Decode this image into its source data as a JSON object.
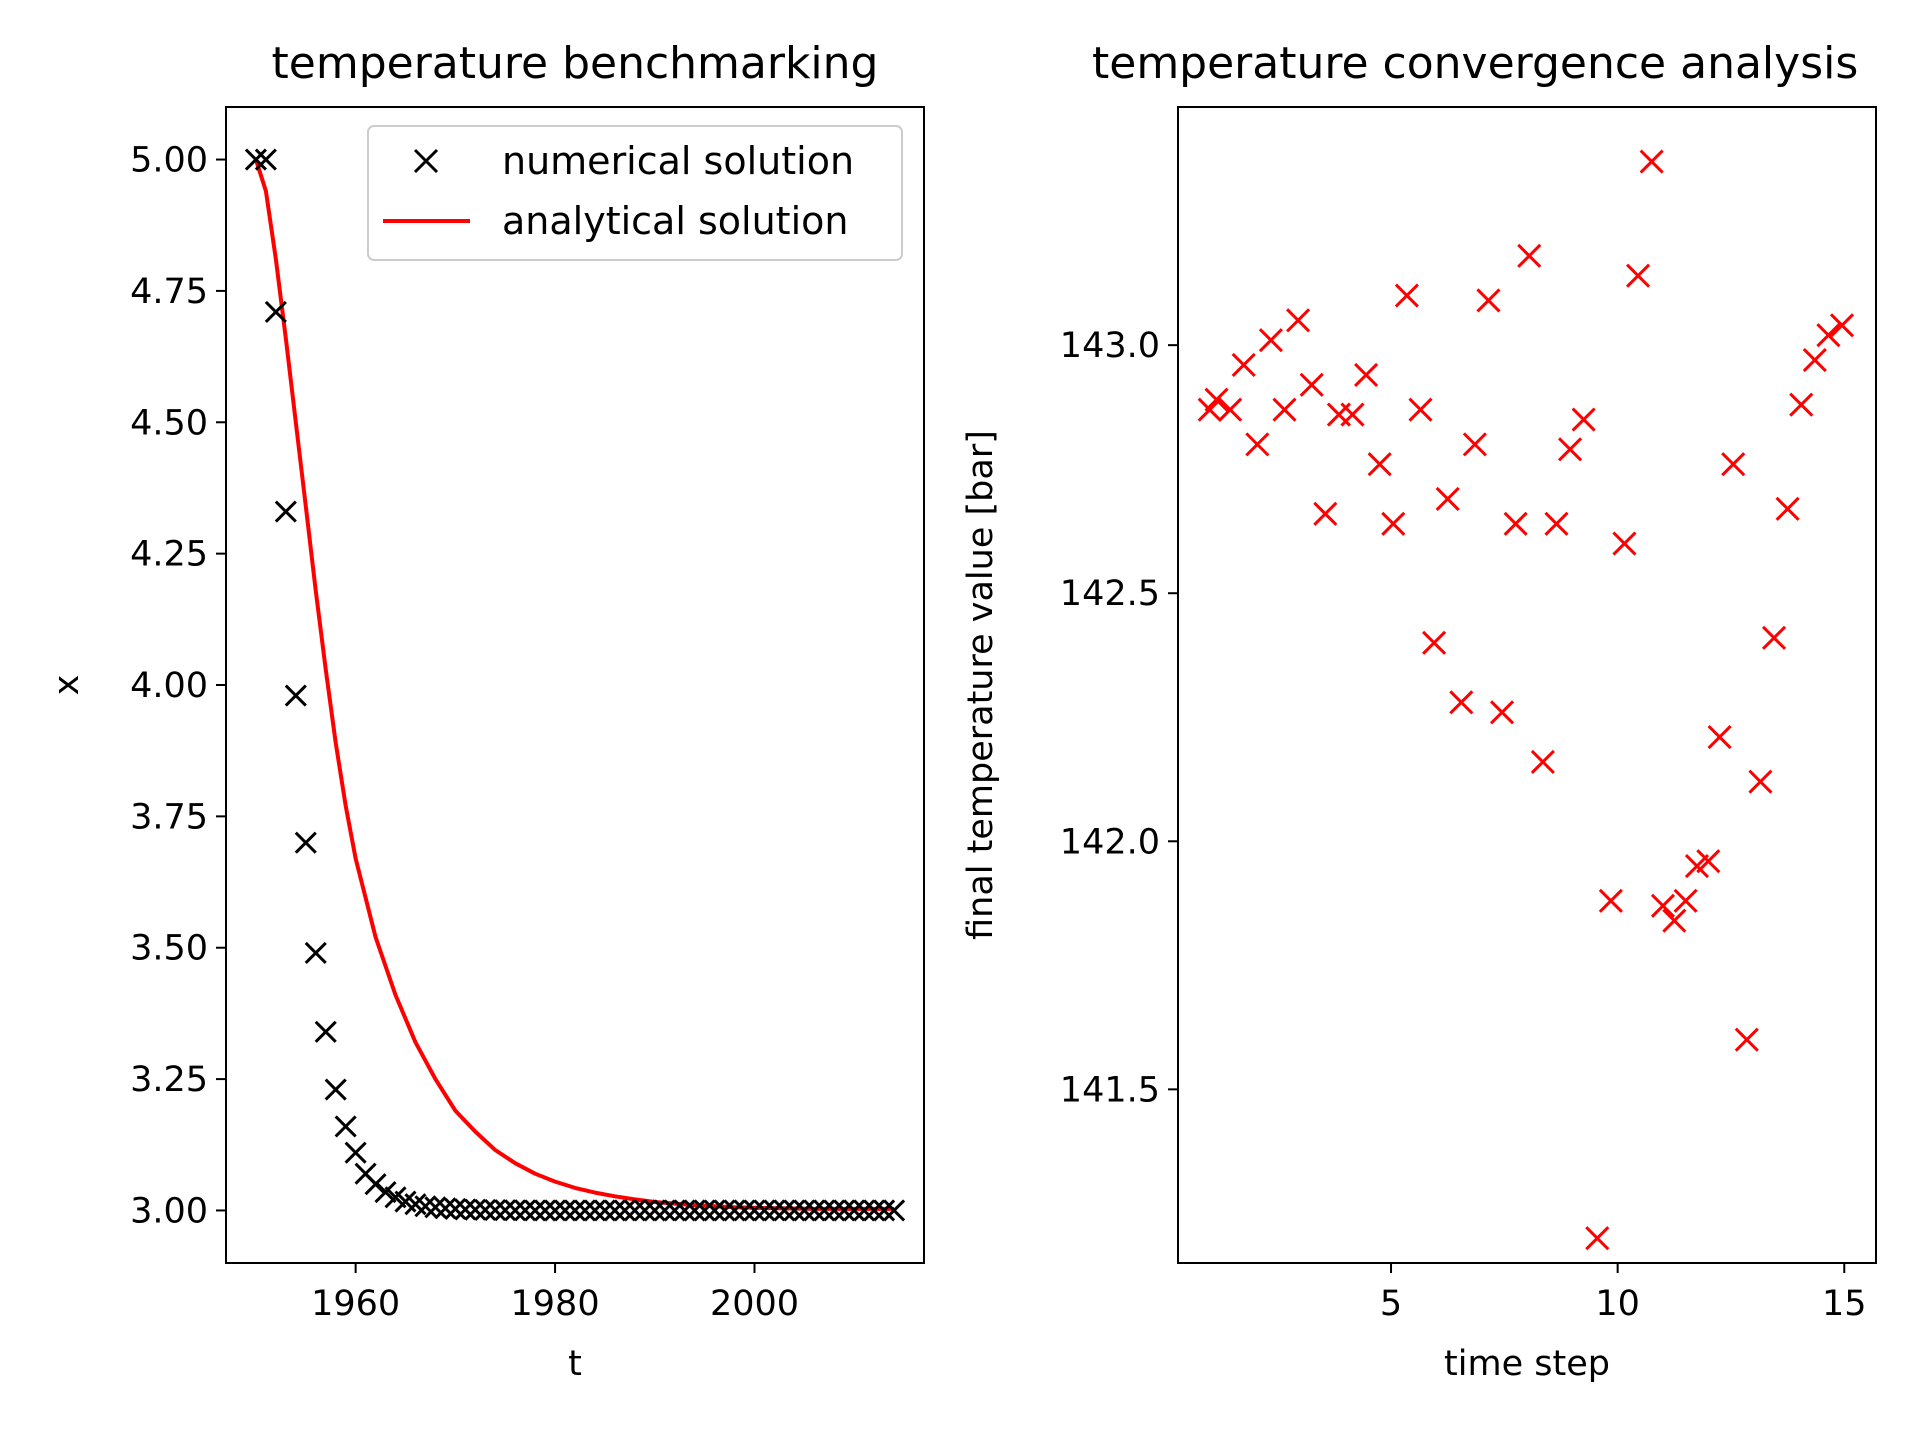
{
  "colors": {
    "numerical": "#000000",
    "analytical": "#ff0000",
    "convergence": "#ff0000"
  },
  "chart_data": [
    {
      "type": "line",
      "title": "temperature benchmarking",
      "xlabel": "t",
      "ylabel": "x",
      "xlim": [
        1947,
        2017
      ],
      "ylim": [
        2.9,
        5.1
      ],
      "xticks": [
        1960,
        1980,
        2000
      ],
      "xtick_labels": [
        "1960",
        "1980",
        "2000"
      ],
      "yticks": [
        3.0,
        3.25,
        3.5,
        3.75,
        4.0,
        4.25,
        4.5,
        4.75,
        5.0
      ],
      "ytick_labels": [
        "3.00",
        "3.25",
        "3.50",
        "3.75",
        "4.00",
        "4.25",
        "4.50",
        "4.75",
        "5.00"
      ],
      "legend": {
        "position": "top-right",
        "entries": [
          "numerical solution",
          "analytical solution"
        ]
      },
      "grid": false,
      "series": [
        {
          "name": "numerical solution",
          "marker": "x",
          "x": [
            1950,
            1951,
            1952,
            1953,
            1954,
            1955,
            1956,
            1957,
            1958,
            1959,
            1960,
            1961,
            1962,
            1963,
            1964,
            1965,
            1966,
            1967,
            1968,
            1969,
            1970,
            1971,
            1972,
            1973,
            1974,
            1975,
            1976,
            1977,
            1978,
            1979,
            1980,
            1981,
            1982,
            1983,
            1984,
            1985,
            1986,
            1987,
            1988,
            1989,
            1990,
            1991,
            1992,
            1993,
            1994,
            1995,
            1996,
            1997,
            1998,
            1999,
            2000,
            2001,
            2002,
            2003,
            2004,
            2005,
            2006,
            2007,
            2008,
            2009,
            2010,
            2011,
            2012,
            2013,
            2014
          ],
          "y": [
            5.0,
            5.0,
            4.71,
            4.33,
            3.98,
            3.7,
            3.49,
            3.34,
            3.23,
            3.16,
            3.11,
            3.07,
            3.05,
            3.035,
            3.025,
            3.017,
            3.012,
            3.008,
            3.006,
            3.004,
            3.003,
            3.002,
            3.0015,
            3.001,
            3.0007,
            3.0005,
            3.0003,
            3.0002,
            3.0001,
            3.0,
            3.0,
            3.0,
            3.0,
            3.0,
            3.0,
            3.0,
            3.0,
            3.0,
            3.0,
            3.0,
            3.0,
            3.0,
            3.0,
            3.0,
            3.0,
            3.0,
            3.0,
            3.0,
            3.0,
            3.0,
            3.0,
            3.0,
            3.0,
            3.0,
            3.0,
            3.0,
            3.0,
            3.0,
            3.0,
            3.0,
            3.0,
            3.0,
            3.0,
            3.0,
            3.0
          ]
        },
        {
          "name": "analytical solution",
          "marker": "none",
          "x": [
            1950,
            1951,
            1952,
            1953,
            1954,
            1955,
            1956,
            1957,
            1958,
            1959,
            1960,
            1962,
            1964,
            1966,
            1968,
            1970,
            1972,
            1974,
            1976,
            1978,
            1980,
            1982,
            1984,
            1986,
            1988,
            1990,
            1992,
            1994,
            1996,
            1998,
            2000,
            2003,
            2006,
            2009,
            2012,
            2014
          ],
          "y": [
            5.0,
            4.94,
            4.81,
            4.66,
            4.5,
            4.34,
            4.18,
            4.03,
            3.89,
            3.77,
            3.67,
            3.52,
            3.41,
            3.32,
            3.25,
            3.19,
            3.15,
            3.115,
            3.09,
            3.07,
            3.055,
            3.043,
            3.034,
            3.027,
            3.021,
            3.016,
            3.013,
            3.01,
            3.008,
            3.006,
            3.005,
            3.004,
            3.003,
            3.003,
            3.003,
            3.003
          ]
        }
      ]
    },
    {
      "type": "scatter",
      "title": "temperature convergence analysis",
      "xlabel": "time step",
      "ylabel": "final temperature value [bar]",
      "xlim": [
        0.3,
        15.7
      ],
      "ylim": [
        141.15,
        143.48
      ],
      "xticks": [
        5,
        10,
        15
      ],
      "xtick_labels": [
        "5",
        "10",
        "15"
      ],
      "yticks": [
        141.5,
        142.0,
        142.5,
        143.0
      ],
      "ytick_labels": [
        "141.5",
        "142.0",
        "142.5",
        "143.0"
      ],
      "grid": false,
      "series": [
        {
          "marker": "x",
          "x": [
            1.0,
            1.15,
            1.45,
            1.75,
            2.05,
            2.35,
            2.65,
            2.95,
            3.25,
            3.55,
            3.85,
            4.15,
            4.45,
            4.75,
            5.05,
            5.35,
            5.65,
            5.95,
            6.25,
            6.55,
            6.85,
            7.15,
            7.45,
            7.75,
            8.05,
            8.35,
            8.65,
            8.95,
            9.25,
            9.55,
            9.85,
            10.15,
            10.45,
            10.75,
            11.0,
            11.25,
            11.5,
            11.75,
            12.0,
            12.25,
            12.55,
            12.85,
            13.15,
            13.45,
            13.75,
            14.05,
            14.35,
            14.65,
            14.95
          ],
          "y": [
            142.87,
            142.89,
            142.87,
            142.96,
            142.8,
            143.01,
            142.87,
            143.05,
            142.92,
            142.66,
            142.86,
            142.86,
            142.94,
            142.76,
            142.64,
            143.1,
            142.87,
            142.4,
            142.69,
            142.28,
            142.8,
            143.09,
            142.26,
            142.64,
            143.18,
            142.16,
            142.64,
            142.79,
            142.85,
            141.2,
            141.88,
            142.6,
            143.14,
            143.37,
            141.87,
            141.84,
            141.88,
            141.95,
            141.96,
            142.21,
            142.76,
            141.6,
            142.12,
            142.41,
            142.67,
            142.88,
            142.97,
            143.02,
            143.04
          ]
        }
      ]
    }
  ]
}
